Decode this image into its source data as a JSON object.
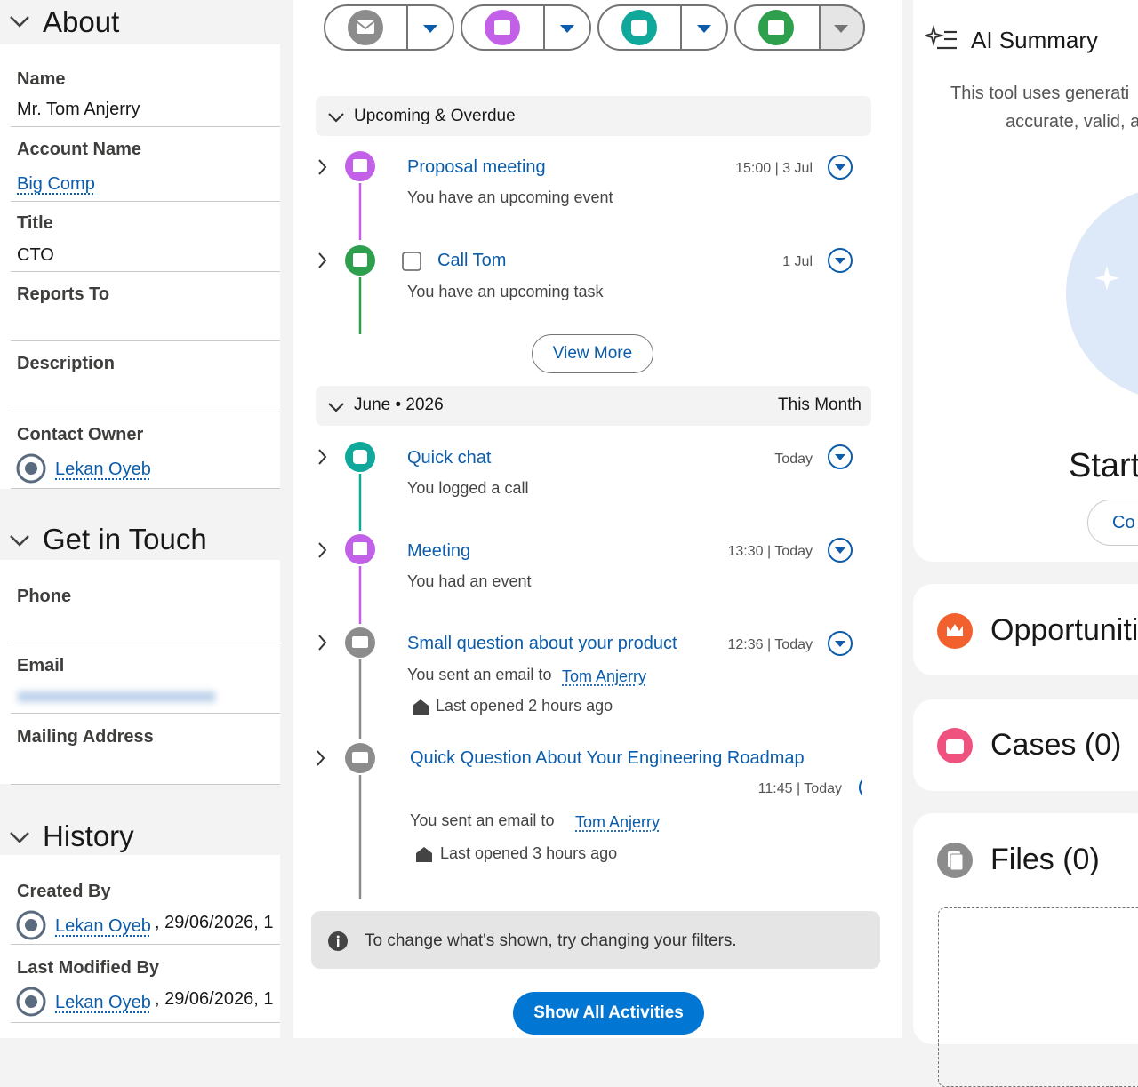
{
  "about": {
    "title": "About",
    "fields": [
      {
        "label": "Name",
        "value": "Mr. Tom Anjerry"
      },
      {
        "label": "Account Name",
        "value": "Big Comp"
      },
      {
        "label": "Title",
        "value": "CTO"
      },
      {
        "label": "Reports To"
      },
      {
        "label": "Description"
      },
      {
        "label": "Contact Owner",
        "value": "Lekan Oyeb"
      }
    ]
  },
  "get_in_touch": {
    "title": "Get in Touch",
    "fields": [
      {
        "label": "Phone"
      },
      {
        "label": "Email"
      },
      {
        "label": "Mailing Address"
      }
    ]
  },
  "history": {
    "title": "History",
    "fields": [
      {
        "label": "Created By",
        "user": "Lekan Oyeb",
        "date": ", 29/06/2026, 1"
      },
      {
        "label": "Last Modified By",
        "user": "Lekan Oyeb",
        "date": ", 29/06/2026, 1"
      }
    ]
  },
  "activity": {
    "upcoming": {
      "title": "Upcoming & Overdue",
      "items": [
        {
          "title": "Proposal meeting",
          "time": "15:00 | 3 Jul",
          "description": "You have an upcoming event"
        },
        {
          "title": "Call Tom",
          "time": "1 Jul",
          "description": "You have an upcoming task"
        }
      ],
      "view_more": "View More"
    },
    "month": {
      "title": "June • 2026",
      "badge": "This Month",
      "items": [
        {
          "title": "Quick chat",
          "time": "Today",
          "description": "You logged a call"
        },
        {
          "title": "Meeting",
          "time": "13:30 | Today",
          "description": "You had an event"
        },
        {
          "title": "Small question about your product",
          "time": "12:36 | Today",
          "description": "You sent an email to",
          "recipient": "Tom Anjerry",
          "opened": "Last opened 2 hours ago"
        },
        {
          "title": "Quick Question About Your Engineering Roadmap",
          "time": "11:45 | Today",
          "description": "You sent an email to",
          "recipient": "Tom Anjerry",
          "opened": "Last opened 3 hours ago"
        }
      ]
    },
    "filter_note": "To change what's shown, try changing your filters.",
    "show_all": "Show All Activities"
  },
  "ai_summary": {
    "title": "AI Summary",
    "lines": [
      "This tool uses generati",
      "accurate, valid, a"
    ],
    "start": "Start",
    "button": "Co"
  },
  "related": [
    {
      "title": "Opportuniti"
    },
    {
      "title": "Cases (0)"
    },
    {
      "title": "Files (0)"
    }
  ]
}
